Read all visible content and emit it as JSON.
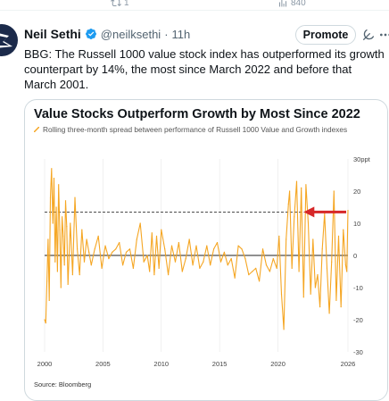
{
  "actions": {
    "retweet_count": "1",
    "views_count": "840"
  },
  "tweet": {
    "display_name": "Neil Sethi",
    "handle": "@neilksethi",
    "separator": "·",
    "time": "11h",
    "promote_label": "Promote",
    "text": "BBG: The Russell 1000 value stock index has outperformed its growth counterpart by 14%, the most since March 2022 and before that March 2001."
  },
  "colors": {
    "series": "#f5a623",
    "arrow": "#d62728",
    "verified": "#1d9bf0"
  },
  "icons": [
    "retweet-icon",
    "views-icon",
    "verified-badge-icon",
    "grok-icon",
    "more-icon"
  ],
  "chart_data": {
    "type": "line",
    "title": "Value Stocks Outperform Growth by Most Since 2022",
    "legend": "Rolling three-month spread between performance of Russell 1000 Value and Growth indexes",
    "source": "Source: Bloomberg",
    "xlim": [
      2000,
      2026
    ],
    "ylim": [
      -30,
      30
    ],
    "y_unit": "30ppt",
    "x_ticks": [
      2000,
      2005,
      2010,
      2015,
      2020,
      2026
    ],
    "x_tick_labels": [
      "2000",
      "2005",
      "2010",
      "2015",
      "2020",
      "2026"
    ],
    "y_ticks": [
      30,
      20,
      10,
      0,
      -10,
      -20,
      -30
    ],
    "y_tick_labels": [
      "30ppt",
      "20",
      "10",
      "0",
      "-10",
      "-20",
      "-30"
    ],
    "reference_line": 13.5,
    "arrow": {
      "from_x": 2026,
      "to_x": 2022.2,
      "y": 13.5
    },
    "series": [
      {
        "x": [
          2000.0,
          2000.1,
          2000.2,
          2000.3,
          2000.4,
          2000.5,
          2000.6,
          2000.7,
          2000.8,
          2000.9,
          2001.0,
          2001.1,
          2001.2,
          2001.3,
          2001.4,
          2001.5,
          2001.6,
          2001.7,
          2001.8,
          2001.9,
          2002.0,
          2002.2,
          2002.4,
          2002.6,
          2002.8,
          2003.0,
          2003.2,
          2003.4,
          2003.6,
          2003.8,
          2004.0,
          2004.3,
          2004.6,
          2004.9,
          2005.2,
          2005.5,
          2005.8,
          2006.1,
          2006.4,
          2006.7,
          2007.0,
          2007.3,
          2007.6,
          2007.9,
          2008.2,
          2008.5,
          2008.8,
          2009.0,
          2009.2,
          2009.4,
          2009.6,
          2009.8,
          2010.0,
          2010.3,
          2010.6,
          2010.9,
          2011.2,
          2011.5,
          2011.8,
          2012.1,
          2012.4,
          2012.7,
          2013.0,
          2013.3,
          2013.6,
          2013.9,
          2014.2,
          2014.5,
          2014.8,
          2015.1,
          2015.4,
          2015.7,
          2016.0,
          2016.3,
          2016.6,
          2016.9,
          2017.2,
          2017.5,
          2017.8,
          2018.1,
          2018.4,
          2018.7,
          2019.0,
          2019.3,
          2019.6,
          2019.9,
          2020.1,
          2020.3,
          2020.5,
          2020.7,
          2020.9,
          2021.0,
          2021.2,
          2021.4,
          2021.6,
          2021.8,
          2022.0,
          2022.2,
          2022.4,
          2022.6,
          2022.8,
          2023.0,
          2023.2,
          2023.4,
          2023.6,
          2023.8,
          2024.0,
          2024.2,
          2024.4,
          2024.6,
          2024.8,
          2025.0,
          2025.2,
          2025.4,
          2025.6,
          2025.8,
          2025.9,
          2026.0
        ],
        "y": [
          -20,
          -21,
          -8,
          5,
          -14,
          18,
          27,
          10,
          24,
          -2,
          15,
          -5,
          22,
          8,
          -10,
          12,
          6,
          -3,
          17,
          9,
          -9,
          10,
          -6,
          18,
          2,
          -6,
          8,
          -2,
          5,
          1,
          -3,
          2,
          6,
          -4,
          3,
          -1,
          1,
          2,
          4,
          -3,
          1,
          2,
          -4,
          5,
          10,
          -2,
          0,
          -5,
          7,
          -6,
          6,
          -4,
          8,
          2,
          -6,
          3,
          -2,
          4,
          -5,
          -1,
          5,
          -3,
          3,
          -4,
          -2,
          3,
          -3,
          2,
          4,
          -2,
          1,
          -3,
          -1,
          -7,
          3,
          2,
          -1,
          -6,
          -5,
          -4,
          -8,
          2,
          -3,
          -5,
          -1,
          -4,
          6,
          -12,
          -23,
          5,
          16,
          20,
          -4,
          12,
          23,
          -5,
          21,
          -13,
          22,
          10,
          -12,
          5,
          -10,
          -6,
          -16,
          2,
          13,
          -4,
          -18,
          -2,
          20,
          -14,
          6,
          -16,
          8,
          -3,
          -5,
          14
        ]
      }
    ]
  }
}
